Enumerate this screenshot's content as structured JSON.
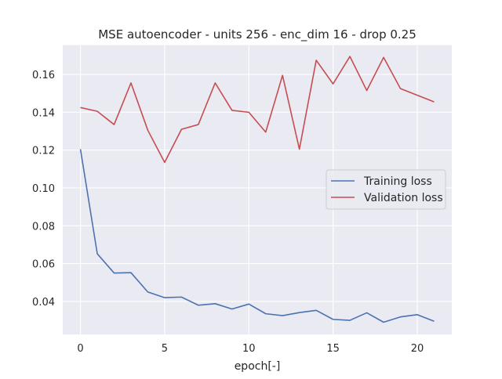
{
  "chart_data": {
    "type": "line",
    "title": "MSE autoencoder - units 256 - enc_dim 16 - drop 0.25",
    "xlabel": "epoch[-]",
    "ylabel": "",
    "xlim": [
      -1.05,
      22.05
    ],
    "ylim": [
      0.0225,
      0.1755
    ],
    "xticks": [
      0,
      5,
      10,
      15,
      20
    ],
    "xtick_labels": [
      "0",
      "5",
      "10",
      "15",
      "20"
    ],
    "yticks": [
      0.04,
      0.06,
      0.08,
      0.1,
      0.12,
      0.14,
      0.16
    ],
    "ytick_labels": [
      "0.04",
      "0.06",
      "0.08",
      "0.10",
      "0.12",
      "0.14",
      "0.16"
    ],
    "grid": true,
    "legend": "center-right",
    "x": [
      0,
      1,
      2,
      3,
      4,
      5,
      6,
      7,
      8,
      9,
      10,
      11,
      12,
      13,
      14,
      15,
      16,
      17,
      18,
      19,
      20,
      21
    ],
    "series": [
      {
        "name": "Training loss",
        "color": "#4c72b0",
        "values": [
          0.1205,
          0.0652,
          0.055,
          0.0552,
          0.045,
          0.042,
          0.0423,
          0.038,
          0.0388,
          0.036,
          0.0386,
          0.0335,
          0.0325,
          0.0341,
          0.0353,
          0.0305,
          0.03,
          0.034,
          0.029,
          0.0318,
          0.033,
          0.0295
        ]
      },
      {
        "name": "Validation loss",
        "color": "#c44e52",
        "values": [
          0.1425,
          0.1405,
          0.1335,
          0.1555,
          0.1305,
          0.1135,
          0.131,
          0.1335,
          0.1555,
          0.141,
          0.14,
          0.1295,
          0.1595,
          0.1205,
          0.1675,
          0.155,
          0.1695,
          0.1515,
          0.169,
          0.1525,
          0.149,
          0.1455
        ]
      }
    ]
  }
}
